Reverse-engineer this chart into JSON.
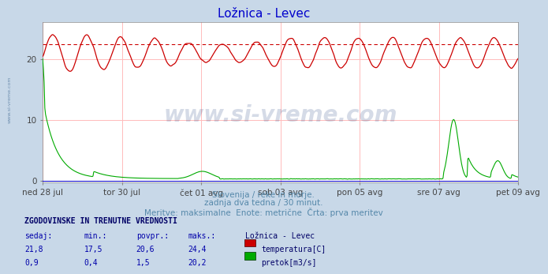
{
  "title": "Ložnica - Levec",
  "bg_color": "#c8d8e8",
  "plot_bg_color": "#ffffff",
  "grid_color": "#ffbbbb",
  "x_tick_labels": [
    "ned 28 jul",
    "tor 30 jul",
    "čet 01 avg",
    "sob 03 avg",
    "pon 05 avg",
    "sre 07 avg",
    "pet 09 avg"
  ],
  "y_ticks": [
    0,
    10,
    20
  ],
  "y_max": 26,
  "y_min": -0.3,
  "dashed_line_value": 22.4,
  "temp_color": "#cc0000",
  "flow_color": "#00aa00",
  "blue_line_color": "#0000cc",
  "watermark_text": "www.si-vreme.com",
  "watermark_color": "#1a3a7a",
  "watermark_alpha": 0.18,
  "subtitle_lines": [
    "Slovenija / reke in morje.",
    "zadnja dva tedna / 30 minut.",
    "Meritve: maksimalne  Enote: metrične  Črta: prva meritev"
  ],
  "table_header": "ZGODOVINSKE IN TRENUTNE VREDNOSTI",
  "col_headers": [
    "sedaj:",
    "min.:",
    "povpr.:",
    "maks.:"
  ],
  "temp_row": [
    "21,8",
    "17,5",
    "20,6",
    "24,4"
  ],
  "flow_row": [
    "0,9",
    "0,4",
    "1,5",
    "20,2"
  ],
  "legend_labels": [
    "temperatura[C]",
    "pretok[m3/s]"
  ],
  "station_label": "Ložnica - Levec",
  "left_label": "www.si-vreme.com"
}
